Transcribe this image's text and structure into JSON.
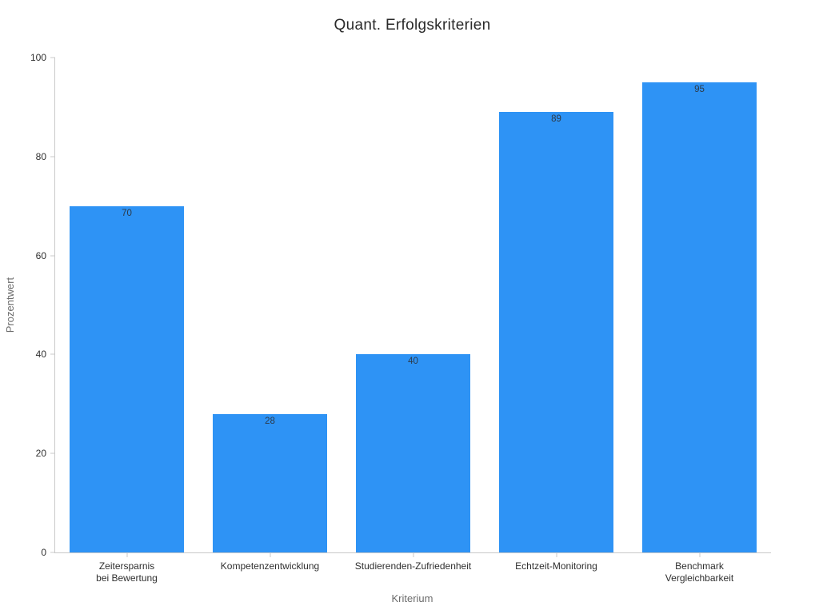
{
  "chart_data": {
    "type": "bar",
    "title": "Quant. Erfolgskriterien",
    "xlabel": "Kriterium",
    "ylabel": "Prozentwert",
    "categories": [
      "Zeitersparnis\nbei Bewertung",
      "Kompetenzentwicklung",
      "Studierenden-Zufriedenheit",
      "Echtzeit-Monitoring",
      "Benchmark\nVergleichbarkeit"
    ],
    "values": [
      70,
      28,
      40,
      89,
      95
    ],
    "value_labels": [
      "70",
      "28",
      "40",
      "89",
      "95"
    ],
    "value_label_position": "inside-top",
    "yticks": [
      0,
      20,
      40,
      60,
      80,
      100
    ],
    "ytick_labels": [
      "0",
      "20",
      "40",
      "60",
      "80",
      "100"
    ],
    "ylim": [
      0,
      100
    ],
    "grid": false,
    "legend": "none",
    "bar_width_fraction": 0.8
  },
  "colors": {
    "background": "#ffffff",
    "bar": "#2E93F5",
    "axis_line": "#c9c9c9",
    "tick_label_text": "#2f2f2f",
    "axis_title_text": "#6b6b6b",
    "title_text": "#2a2a2a",
    "value_label_text": "#2c3a49"
  }
}
